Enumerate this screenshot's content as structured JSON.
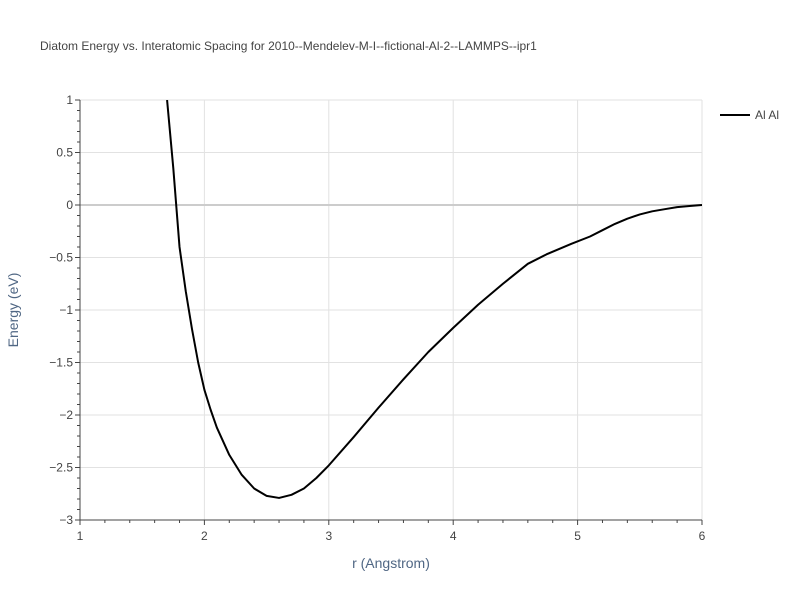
{
  "chart_data": {
    "type": "line",
    "title": "Diatom Energy vs. Interatomic Spacing for 2010--Mendelev-M-I--fictional-Al-2--LAMMPS--ipr1",
    "xlabel": "r (Angstrom)",
    "ylabel": "Energy (eV)",
    "xlim": [
      1,
      6
    ],
    "ylim": [
      -3,
      1
    ],
    "x_ticks": [
      1,
      2,
      3,
      4,
      5,
      6
    ],
    "x_tick_labels": [
      "1",
      "2",
      "3",
      "4",
      "5",
      "6"
    ],
    "y_ticks": [
      1,
      0.5,
      0,
      -0.5,
      -1,
      -1.5,
      -2,
      -2.5,
      -3
    ],
    "y_tick_labels": [
      "1",
      "0.5",
      "0",
      "−0.5",
      "−1",
      "−1.5",
      "−2",
      "−2.5",
      "−3"
    ],
    "grid": true,
    "legend_position": "top-right",
    "series": [
      {
        "name": "Al Al",
        "color": "#000000",
        "x": [
          1.7,
          1.75,
          1.8,
          1.85,
          1.9,
          1.95,
          2.0,
          2.05,
          2.1,
          2.2,
          2.3,
          2.4,
          2.5,
          2.6,
          2.7,
          2.8,
          2.9,
          3.0,
          3.2,
          3.4,
          3.6,
          3.8,
          4.0,
          4.2,
          4.4,
          4.6,
          4.75,
          4.95,
          5.1,
          5.2,
          5.3,
          5.4,
          5.5,
          5.6,
          5.7,
          5.8,
          5.9,
          6.0
        ],
        "y": [
          1.0,
          0.35,
          -0.4,
          -0.82,
          -1.18,
          -1.5,
          -1.76,
          -1.95,
          -2.12,
          -2.38,
          -2.57,
          -2.7,
          -2.77,
          -2.79,
          -2.76,
          -2.7,
          -2.6,
          -2.48,
          -2.21,
          -1.93,
          -1.66,
          -1.4,
          -1.17,
          -0.95,
          -0.75,
          -0.56,
          -0.47,
          -0.37,
          -0.3,
          -0.24,
          -0.18,
          -0.13,
          -0.09,
          -0.06,
          -0.04,
          -0.02,
          -0.01,
          0.0
        ]
      }
    ]
  }
}
